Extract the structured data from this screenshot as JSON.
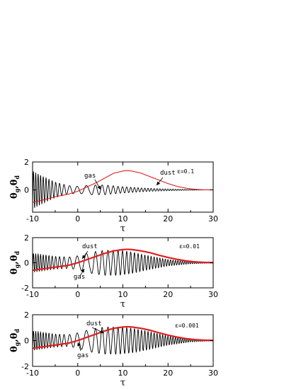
{
  "chart_data": [
    {
      "type": "line",
      "panel_label": "ε=0.1",
      "xlabel": "τ",
      "ylabel": "θ_g, θ_d",
      "xlim": [
        -10,
        30
      ],
      "ylim": [
        -2,
        2
      ],
      "xticks": [
        "-10",
        "0",
        "10",
        "20",
        "30"
      ],
      "yticks": [
        "2",
        "0",
        "-2"
      ],
      "series": [
        {
          "name": "gas",
          "color": "#000000",
          "kind": "fast-oscillation",
          "envelope_tau": [
            -10,
            -8,
            -5,
            -2,
            0,
            3,
            6,
            9,
            12,
            15,
            20,
            25,
            30
          ],
          "envelope_amp": [
            1.35,
            1.0,
            0.55,
            0.3,
            0.25,
            0.35,
            0.35,
            0.25,
            0.18,
            0.12,
            0.06,
            0.02,
            0.0
          ]
        },
        {
          "name": "dust",
          "color": "#e02020",
          "kind": "smooth",
          "x": [
            -10,
            -8,
            -5,
            -2,
            0,
            2,
            4,
            6,
            8,
            10,
            11,
            12,
            14,
            16,
            18,
            20,
            22,
            24,
            26,
            28,
            30
          ],
          "y": [
            -0.9,
            -0.75,
            -0.5,
            -0.3,
            -0.1,
            0.2,
            0.5,
            0.85,
            1.2,
            1.35,
            1.38,
            1.35,
            1.2,
            0.95,
            0.7,
            0.45,
            0.25,
            0.12,
            0.04,
            0.0,
            0.0
          ]
        }
      ],
      "annotations": [
        {
          "text": "gas",
          "points_to": "gas"
        },
        {
          "text": "dust",
          "points_to": "dust"
        }
      ]
    },
    {
      "type": "line",
      "panel_label": "ε=0.01",
      "xlabel": "τ",
      "ylabel": "θ_g, θ_d",
      "xlim": [
        -10,
        30
      ],
      "ylim": [
        -2,
        2
      ],
      "xticks": [
        "-10",
        "0",
        "10",
        "20",
        "30"
      ],
      "yticks": [
        "2",
        "0",
        "-2"
      ],
      "series": [
        {
          "name": "gas",
          "color": "#000000",
          "kind": "fast-oscillation",
          "envelope_tau": [
            -10,
            -8,
            -5,
            -2,
            0,
            3,
            6,
            9,
            12,
            15,
            20,
            25,
            30
          ],
          "envelope_amp": [
            0.75,
            0.65,
            0.5,
            0.45,
            0.55,
            0.85,
            1.0,
            1.0,
            0.85,
            0.6,
            0.25,
            0.08,
            0.02
          ]
        },
        {
          "name": "dust",
          "color": "#e02020",
          "kind": "smooth",
          "x": [
            -10,
            -8,
            -5,
            -2,
            0,
            2,
            4,
            6,
            8,
            10,
            11,
            12,
            14,
            16,
            18,
            20,
            22,
            24,
            26,
            28,
            30
          ],
          "y": [
            -0.6,
            -0.5,
            -0.35,
            -0.2,
            0.0,
            0.25,
            0.5,
            0.75,
            0.95,
            1.05,
            1.07,
            1.05,
            0.95,
            0.8,
            0.6,
            0.42,
            0.27,
            0.15,
            0.07,
            0.03,
            0.01
          ]
        }
      ],
      "annotations": [
        {
          "text": "dust",
          "points_to": "dust"
        },
        {
          "text": "gas",
          "points_to": "gas"
        }
      ]
    },
    {
      "type": "line",
      "panel_label": "ε=0.001",
      "xlabel": "τ",
      "ylabel": "θ_g, θ_d",
      "xlim": [
        -10,
        30
      ],
      "ylim": [
        -2,
        2
      ],
      "xticks": [
        "-10",
        "0",
        "10",
        "20",
        "30"
      ],
      "yticks": [
        "2",
        "0",
        "-2"
      ],
      "series": [
        {
          "name": "gas",
          "color": "#000000",
          "kind": "fast-oscillation",
          "envelope_tau": [
            -10,
            -8,
            -5,
            -2,
            0,
            3,
            6,
            9,
            12,
            15,
            20,
            25,
            30
          ],
          "envelope_amp": [
            0.75,
            0.65,
            0.5,
            0.45,
            0.6,
            0.9,
            1.05,
            1.05,
            0.95,
            0.75,
            0.35,
            0.1,
            0.02
          ]
        },
        {
          "name": "dust",
          "color": "#e02020",
          "kind": "smooth",
          "x": [
            -10,
            -8,
            -5,
            -2,
            0,
            2,
            4,
            6,
            8,
            10,
            11,
            12,
            14,
            16,
            18,
            20,
            22,
            24,
            26,
            28,
            30
          ],
          "y": [
            -0.6,
            -0.5,
            -0.35,
            -0.2,
            0.0,
            0.25,
            0.5,
            0.75,
            0.95,
            1.05,
            1.07,
            1.05,
            0.95,
            0.8,
            0.6,
            0.42,
            0.27,
            0.15,
            0.07,
            0.03,
            0.01
          ]
        }
      ],
      "annotations": [
        {
          "text": "dust",
          "points_to": "dust"
        },
        {
          "text": "gas",
          "points_to": "gas"
        }
      ]
    }
  ]
}
